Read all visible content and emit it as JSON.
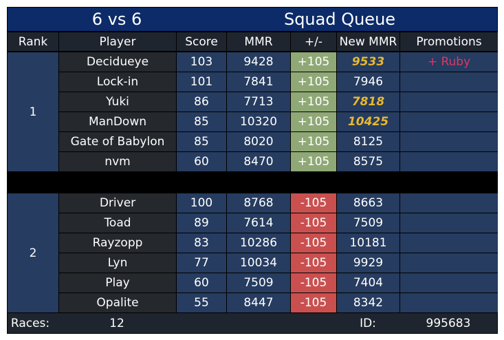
{
  "header": {
    "mode": "6 vs 6",
    "title": "Squad Queue"
  },
  "columns": [
    "Rank",
    "Player",
    "Score",
    "MMR",
    "+/-",
    "New MMR",
    "Promotions"
  ],
  "teams": [
    {
      "rank": "1",
      "delta_color": "#8fa876",
      "rows": [
        {
          "player": "Decidueye",
          "score": 103,
          "mmr": 9428,
          "delta": "+105",
          "new_mmr": 9533,
          "highlight": true,
          "promotion": "+ Ruby"
        },
        {
          "player": "Lock-in",
          "score": 101,
          "mmr": 7841,
          "delta": "+105",
          "new_mmr": 7946
        },
        {
          "player": "Yuki",
          "score": 86,
          "mmr": 7713,
          "delta": "+105",
          "new_mmr": 7818,
          "highlight": true
        },
        {
          "player": "ManDown",
          "score": 85,
          "mmr": 10320,
          "delta": "+105",
          "new_mmr": 10425,
          "highlight": true
        },
        {
          "player": "Gate of Babylon",
          "score": 85,
          "mmr": 8020,
          "delta": "+105",
          "new_mmr": 8125
        },
        {
          "player": "nvm",
          "score": 60,
          "mmr": 8470,
          "delta": "+105",
          "new_mmr": 8575
        }
      ]
    },
    {
      "rank": "2",
      "delta_color": "#c9504f",
      "rows": [
        {
          "player": "Driver",
          "score": 100,
          "mmr": 8768,
          "delta": "-105",
          "new_mmr": 8663
        },
        {
          "player": "Toad",
          "score": 89,
          "mmr": 7614,
          "delta": "-105",
          "new_mmr": 7509
        },
        {
          "player": "Rayzopp",
          "score": 83,
          "mmr": 10286,
          "delta": "-105",
          "new_mmr": 10181
        },
        {
          "player": "Lyn",
          "score": 77,
          "mmr": 10034,
          "delta": "-105",
          "new_mmr": 9929
        },
        {
          "player": "Play",
          "score": 60,
          "mmr": 7509,
          "delta": "-105",
          "new_mmr": 7404
        },
        {
          "player": "Opalite",
          "score": 55,
          "mmr": 8447,
          "delta": "-105",
          "new_mmr": 8342
        }
      ]
    }
  ],
  "footer": {
    "races_label": "Races:",
    "races": 12,
    "id_label": "ID:",
    "id": 995683
  }
}
